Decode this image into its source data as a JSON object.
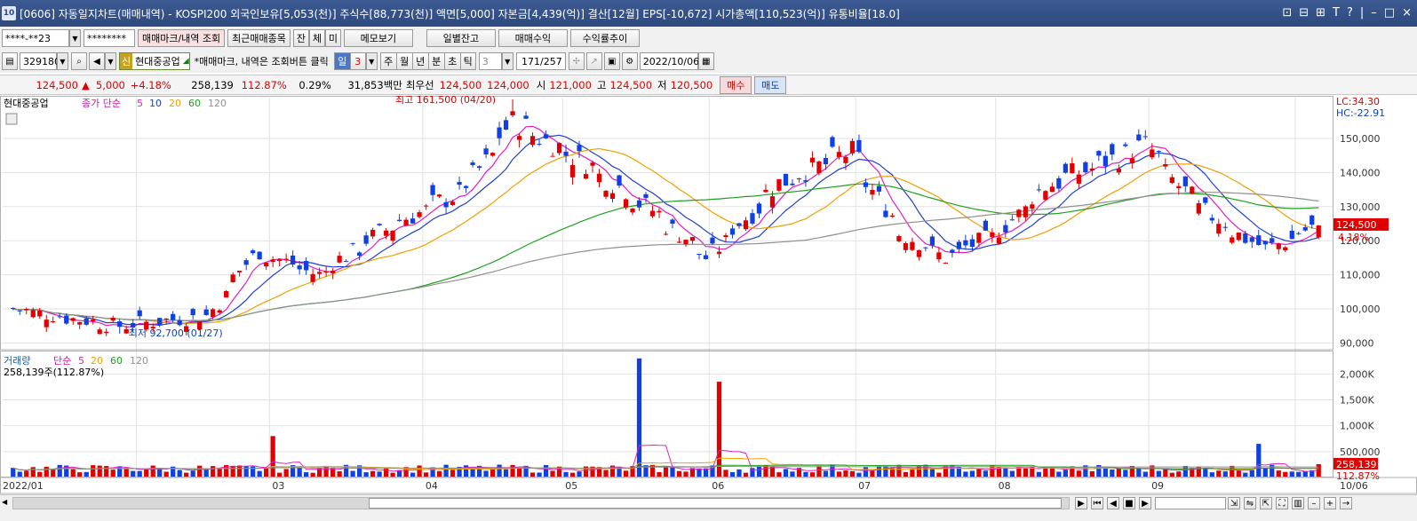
{
  "titlebar": {
    "app_icon": "10",
    "text": "[0606] 자동일지차트(매매내역) - KOSPI200 외국인보유[5,053(천)] 주식수[88,773(천)] 액면[5,000] 자본금[4,439(억)] 결산[12월] EPS[-10,672] 시가총액[110,523(억)] 유통비율[18.0]",
    "buttons": [
      "⊡",
      "⊟",
      "⊞",
      "T",
      "?",
      "|",
      "–",
      "□",
      "×"
    ]
  },
  "toolbar1": {
    "account": "****-**23",
    "password": "********",
    "trade_mark_btn": "매매마크/내역 조회",
    "recent_btn": "최근매매종목",
    "tab_jan": "잔",
    "tab_che": "체",
    "tab_mi": "미",
    "memo_btn": "메모보기",
    "daily_balance_btn": "일별잔고",
    "trade_profit_btn": "매매수익",
    "return_trend_btn": "수익률추이"
  },
  "toolbar2": {
    "code": "329180",
    "stock_badge": "신",
    "stock_name": "현대중공업",
    "notice": "*매매마크, 내역은 조회버튼 클릭",
    "period_day": "일",
    "period_value": "3",
    "period_week": "주",
    "period_month": "월",
    "period_year": "년",
    "period_min": "분",
    "period_sec": "초",
    "period_tick": "틱",
    "tick_value": "3",
    "count": "171/257",
    "date": "2022/10/06"
  },
  "quote": {
    "price": "124,500",
    "arrow": "▲",
    "change": "5,000",
    "change_pct": "+4.18%",
    "volume": "258,139",
    "volume_pct": "112.87%",
    "turnover_pct": "0.29%",
    "amount": "31,853백만",
    "best_ask_label": "최우선",
    "best_ask": "124,500",
    "best_bid": "124,000",
    "open_label": "시",
    "open": "121,000",
    "high_label": "고",
    "high": "124,500",
    "low_label": "저",
    "low": "120,500",
    "buy_btn": "매수",
    "sell_btn": "매도"
  },
  "price_panel": {
    "stock_label": "현대중공업",
    "ma_label": "종가 단순",
    "ma_periods": [
      "5",
      "10",
      "20",
      "60",
      "120"
    ],
    "ma_colors": [
      "#e020c0",
      "#2040d0",
      "#f0a000",
      "#20a020",
      "#909090"
    ],
    "high_annotation": "최고 161,500 (04/20)",
    "low_annotation": "최저 92,700 (01/27)",
    "lc": "LC:34.30",
    "hc": "HC:-22.91",
    "current_price_tag": "124,500",
    "current_pct_tag": "4.18%",
    "signal_buy": "B",
    "signal_sell": "S"
  },
  "volume_panel": {
    "label": "거래량",
    "ma_label": "단순",
    "ma_periods": [
      "5",
      "20",
      "60",
      "120"
    ],
    "sub_label": "258,139주(112.87%)",
    "current_tag": "258,139",
    "current_pct_tag": "112.87%"
  },
  "x_axis": {
    "labels": [
      "2022/01",
      "03",
      "04",
      "05",
      "06",
      "07",
      "08",
      "09",
      "10"
    ],
    "end_label": "10/06"
  },
  "chart_data": [
    {
      "type": "candlestick",
      "title": "현대중공업",
      "ylim": [
        88000,
        162000
      ],
      "yticks": [
        90000,
        100000,
        110000,
        120000,
        130000,
        140000,
        150000
      ],
      "ytick_labels": [
        "90,000",
        "100,000",
        "110,000",
        "120,000",
        "130,000",
        "140,000",
        "150,000"
      ],
      "close_key_points": [
        {
          "date": "2022/01/05",
          "close": 100000
        },
        {
          "date": "2022/01/27",
          "close": 95000
        },
        {
          "date": "2022/02/15",
          "close": 98000
        },
        {
          "date": "2022/02/25",
          "close": 117000
        },
        {
          "date": "2022/03/10",
          "close": 110000
        },
        {
          "date": "2022/03/25",
          "close": 124000
        },
        {
          "date": "2022/04/10",
          "close": 135000
        },
        {
          "date": "2022/04/20",
          "close": 155000
        },
        {
          "date": "2022/05/05",
          "close": 143000
        },
        {
          "date": "2022/05/20",
          "close": 128000
        },
        {
          "date": "2022/05/31",
          "close": 115000
        },
        {
          "date": "2022/06/15",
          "close": 137000
        },
        {
          "date": "2022/06/30",
          "close": 146000
        },
        {
          "date": "2022/07/10",
          "close": 123000
        },
        {
          "date": "2022/07/20",
          "close": 115000
        },
        {
          "date": "2022/07/31",
          "close": 122000
        },
        {
          "date": "2022/08/10",
          "close": 136000
        },
        {
          "date": "2022/08/31",
          "close": 148000
        },
        {
          "date": "2022/09/10",
          "close": 131000
        },
        {
          "date": "2022/09/25",
          "close": 117000
        },
        {
          "date": "2022/10/06",
          "close": 124500
        }
      ],
      "high": 161500,
      "low": 92700
    },
    {
      "type": "bar",
      "title": "거래량",
      "ylim": [
        0,
        2400000
      ],
      "yticks": [
        500000,
        1000000,
        1500000,
        2000000
      ],
      "ytick_labels": [
        "500,000",
        "1,000K",
        "1,500K",
        "2,000K"
      ],
      "peaks": [
        {
          "date": "2022/03/01",
          "value": 800000
        },
        {
          "date": "2022/05/17",
          "value": 2300000
        },
        {
          "date": "2022/06/02",
          "value": 1850000
        },
        {
          "date": "2022/09/23",
          "value": 650000
        }
      ],
      "last_value": 258139
    }
  ]
}
